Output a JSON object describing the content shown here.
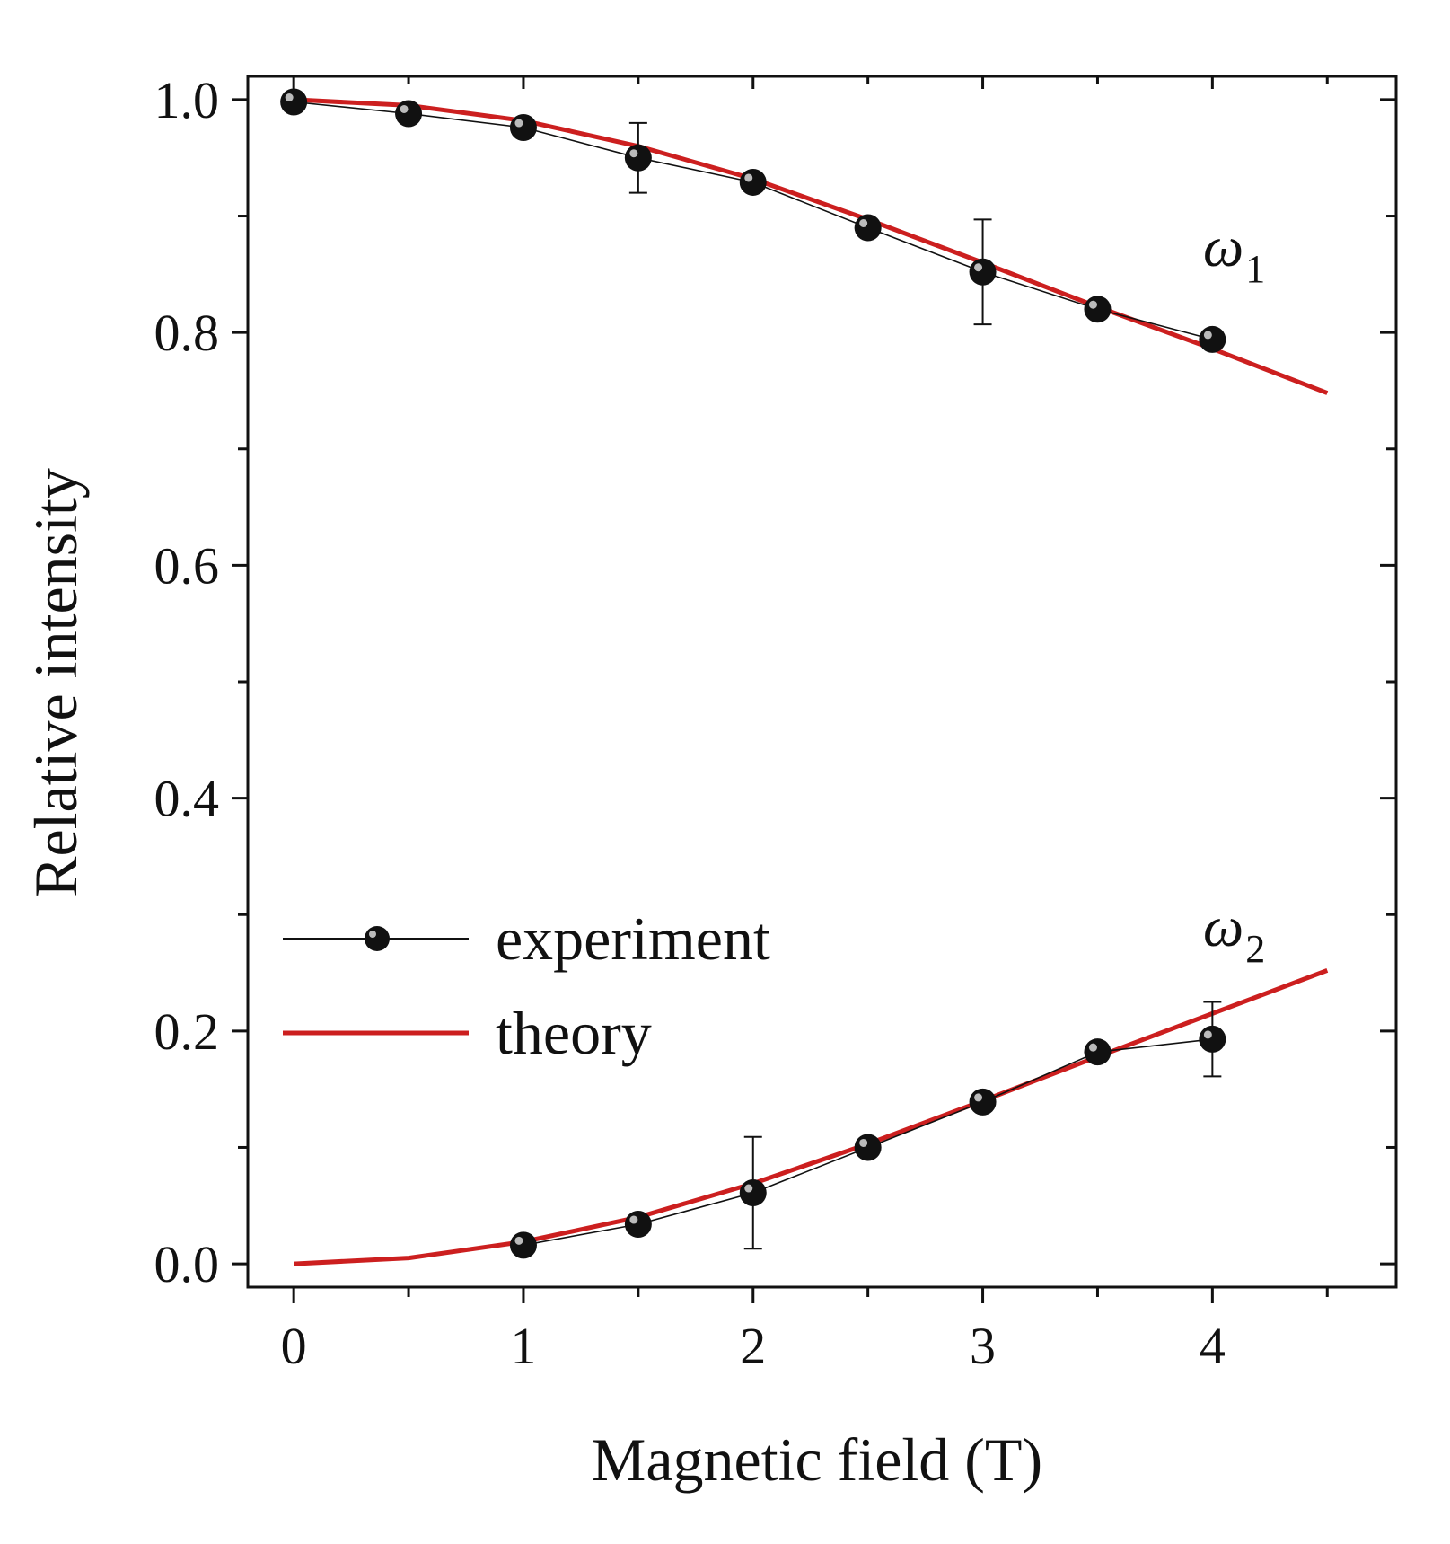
{
  "chart_data": {
    "type": "line",
    "xlabel": "Magnetic field (T)",
    "ylabel": "Relative intensity",
    "xlim": [
      -0.2,
      4.8
    ],
    "ylim": [
      -0.02,
      1.02
    ],
    "xticks": [
      0,
      1,
      2,
      3,
      4
    ],
    "xtick_labels": [
      "0",
      "1",
      "2",
      "3",
      "4"
    ],
    "yticks": [
      0.0,
      0.2,
      0.4,
      0.6,
      0.8,
      1.0
    ],
    "ytick_labels": [
      "0.0",
      "0.2",
      "0.4",
      "0.6",
      "0.8",
      "1.0"
    ],
    "legend_position": "lower-left",
    "legend": {
      "experiment": "experiment",
      "theory": "theory"
    },
    "annotations": [
      {
        "label": "ω",
        "sub": "1",
        "x": 4.1,
        "y": 0.87
      },
      {
        "label": "ω",
        "sub": "2",
        "x": 4.1,
        "y": 0.29
      }
    ],
    "series": [
      {
        "name": "experiment ω1",
        "kind": "experiment",
        "x": [
          0,
          0.5,
          1.0,
          1.5,
          2.0,
          2.5,
          3.0,
          3.5,
          4.0
        ],
        "y": [
          0.998,
          0.988,
          0.976,
          0.95,
          0.929,
          0.89,
          0.852,
          0.82,
          0.794
        ],
        "err": [
          0,
          0,
          0,
          0.03,
          0,
          0,
          0.045,
          0,
          0
        ]
      },
      {
        "name": "experiment ω2",
        "kind": "experiment",
        "x": [
          1.0,
          1.5,
          2.0,
          2.5,
          3.0,
          3.5,
          4.0
        ],
        "y": [
          0.016,
          0.034,
          0.061,
          0.1,
          0.139,
          0.182,
          0.193
        ],
        "err": [
          0,
          0,
          0.048,
          0,
          0,
          0,
          0.032
        ]
      },
      {
        "name": "theory ω1",
        "kind": "theory",
        "x": [
          0,
          0.5,
          1.0,
          1.5,
          2.0,
          2.5,
          3.0,
          3.5,
          4.0,
          4.5
        ],
        "y": [
          1.0,
          0.995,
          0.982,
          0.96,
          0.932,
          0.897,
          0.86,
          0.822,
          0.786,
          0.748
        ]
      },
      {
        "name": "theory ω2",
        "kind": "theory",
        "x": [
          0,
          0.5,
          1.0,
          1.5,
          2.0,
          2.5,
          3.0,
          3.5,
          4.0,
          4.5
        ],
        "y": [
          0.0,
          0.005,
          0.019,
          0.04,
          0.069,
          0.103,
          0.14,
          0.178,
          0.215,
          0.252
        ]
      }
    ]
  }
}
